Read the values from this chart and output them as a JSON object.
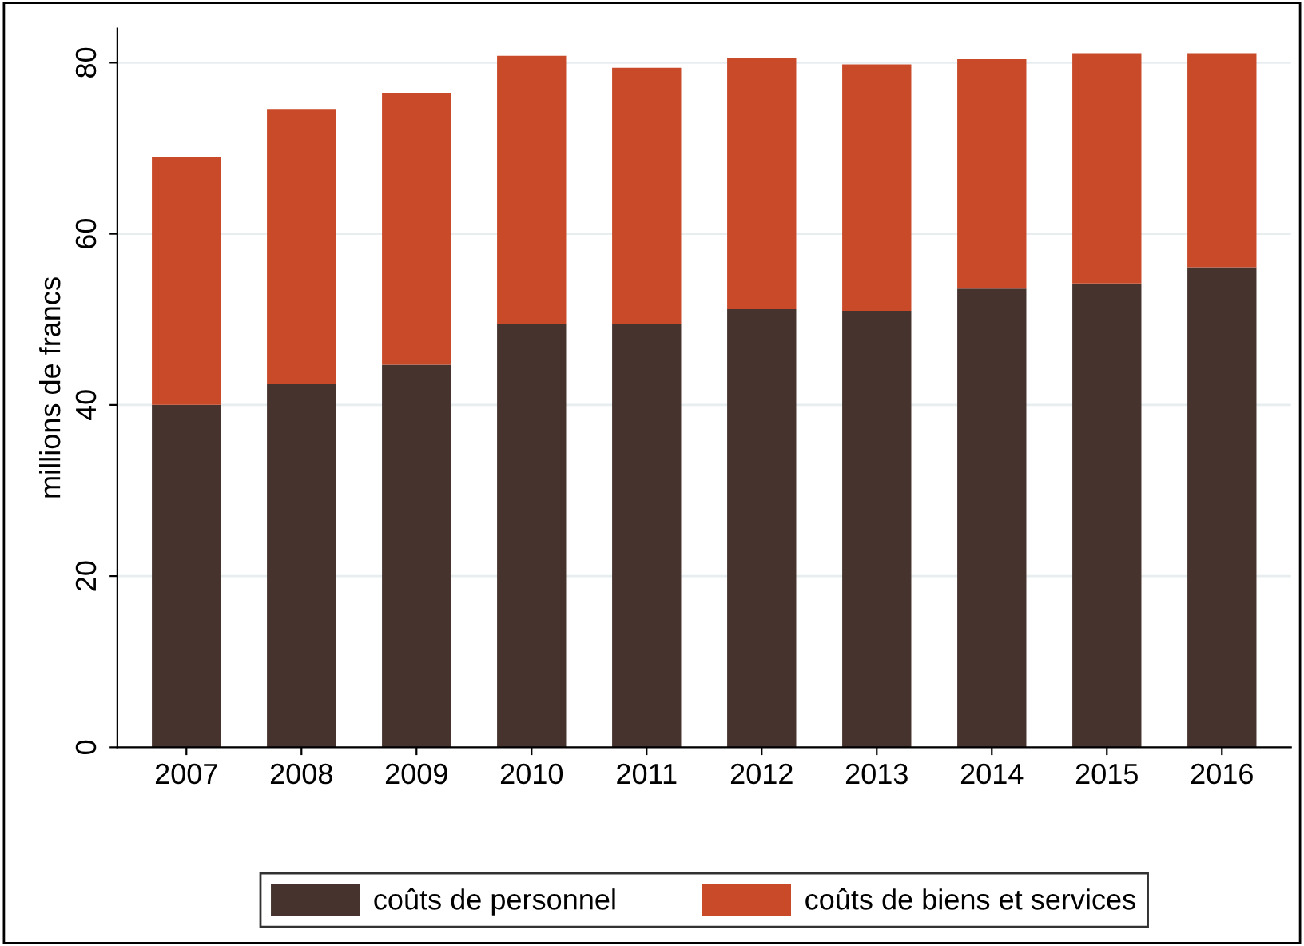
{
  "chart_data": {
    "type": "bar",
    "stacked": true,
    "ylabel": "millions de francs",
    "categories": [
      "2007",
      "2008",
      "2009",
      "2010",
      "2011",
      "2012",
      "2013",
      "2014",
      "2015",
      "2016"
    ],
    "series": [
      {
        "name": "coûts de personnel",
        "color": "#46332e",
        "values": [
          40.0,
          42.5,
          44.7,
          49.5,
          49.5,
          51.2,
          51.0,
          53.6,
          54.2,
          56.1
        ]
      },
      {
        "name": "coûts de biens et services",
        "color": "#c94a29",
        "values": [
          29.0,
          32.0,
          31.7,
          31.3,
          29.9,
          29.4,
          28.8,
          26.8,
          26.9,
          25.0
        ]
      }
    ],
    "ylim": [
      0,
      84
    ],
    "yticks": [
      0,
      20,
      40,
      60,
      80
    ],
    "grid": "y",
    "legend": "bottom"
  }
}
